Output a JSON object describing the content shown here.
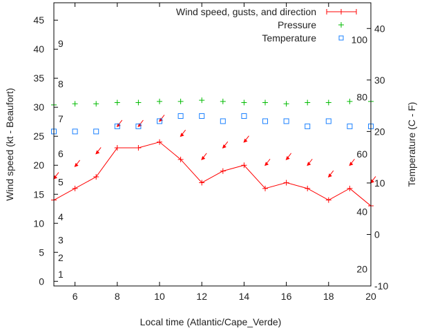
{
  "chart_data": {
    "type": "line",
    "xlabel": "Local time (Atlantic/Cape_Verde)",
    "ylabel": "Wind speed (kt - Beaufort)",
    "y2label": "Temperature (C - F)",
    "xlim": [
      5,
      20
    ],
    "ylim": [
      -0.8,
      48
    ],
    "y2lim": [
      -10,
      45
    ],
    "x_ticks": [
      6,
      8,
      10,
      12,
      14,
      16,
      18,
      20
    ],
    "y_ticks": [
      0,
      5,
      10,
      15,
      20,
      25,
      30,
      35,
      40,
      45
    ],
    "y2_ticks": [
      -10,
      0,
      10,
      20,
      30,
      40
    ],
    "beaufort_labels": [
      {
        "label": "1",
        "kt": 1.2
      },
      {
        "label": "2",
        "kt": 4.1
      },
      {
        "label": "3",
        "kt": 7.1
      },
      {
        "label": "4",
        "kt": 11.1
      },
      {
        "label": "5",
        "kt": 17.1
      },
      {
        "label": "6",
        "kt": 22
      },
      {
        "label": "7",
        "kt": 28
      },
      {
        "label": "8",
        "kt": 34
      },
      {
        "label": "9",
        "kt": 41
      }
    ],
    "fahrenheit_labels": [
      {
        "label": "20",
        "c": -6.7
      },
      {
        "label": "40",
        "c": 4.4
      },
      {
        "label": "60",
        "c": 15.6
      },
      {
        "label": "80",
        "c": 26.7
      },
      {
        "label": "100",
        "c": 37.8
      }
    ],
    "legend_position": "top-right",
    "x": [
      5,
      6,
      7,
      8,
      9,
      10,
      11,
      12,
      13,
      14,
      15,
      16,
      17,
      18,
      19,
      20
    ],
    "series": [
      {
        "name": "Wind speed, gusts, and direction",
        "color": "#ff0000",
        "axis": "y",
        "values": [
          14,
          16,
          18,
          23,
          23,
          24,
          21,
          17,
          19,
          20,
          16,
          17,
          16,
          14,
          16,
          13
        ],
        "gusts": [
          17.7,
          19.8,
          22,
          26.7,
          26.7,
          27.6,
          25,
          21,
          23,
          24,
          20,
          21,
          20,
          18,
          20,
          17
        ],
        "direction_from": "NE"
      },
      {
        "name": "Pressure",
        "color": "#00bb00",
        "axis": "y",
        "values": [
          30.4,
          30.6,
          30.6,
          30.8,
          30.8,
          31.0,
          31.0,
          31.2,
          31.0,
          30.8,
          30.8,
          30.6,
          30.8,
          30.8,
          31.0,
          31.0
        ]
      },
      {
        "name": "Temperature",
        "color": "#1a80ff",
        "axis": "y2",
        "values": [
          20,
          20,
          20,
          21,
          21,
          22,
          23,
          23,
          22,
          23,
          22,
          22,
          21,
          22,
          21,
          21
        ]
      }
    ]
  }
}
